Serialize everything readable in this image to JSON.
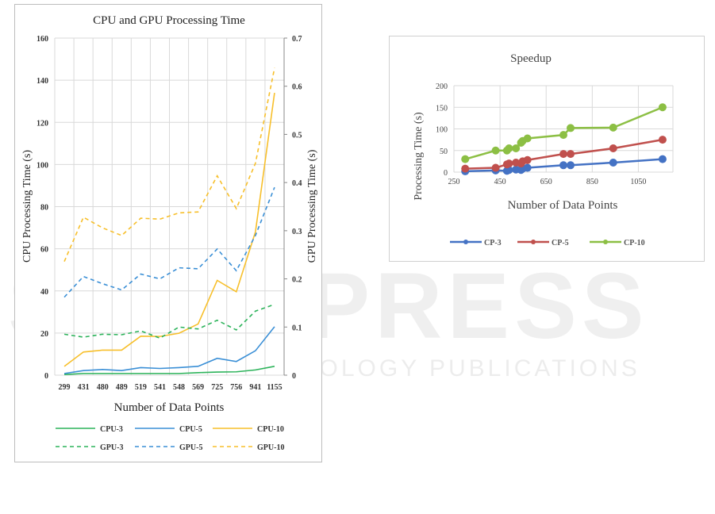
{
  "watermark": {
    "main": "SCITEPRESS",
    "sub": "SCIENCE AND TECHNOLOGY PUBLICATIONS"
  },
  "chart_data": [
    {
      "type": "line",
      "title": "CPU and GPU Processing Time",
      "xlabel": "Number of Data Points",
      "ylabel": "CPU Processing Time (s)",
      "y2label": "GPU Processing Time (s)",
      "categories": [
        "299",
        "431",
        "480",
        "489",
        "519",
        "541",
        "548",
        "569",
        "725",
        "756",
        "941",
        "1155"
      ],
      "ylim": [
        0,
        160
      ],
      "yticks": [
        0,
        20,
        40,
        60,
        80,
        100,
        120,
        140,
        160
      ],
      "y2lim": [
        0,
        0.7
      ],
      "y2ticks": [
        "0",
        "0.1",
        "0.2",
        "0.3",
        "0.4",
        "0.5",
        "0.6",
        "0.7"
      ],
      "grid": true,
      "legend_position": "bottom",
      "series": [
        {
          "name": "CPU-3",
          "axis": "left",
          "style": "solid",
          "color": "#2cb35a",
          "values": [
            0.3,
            0.8,
            0.8,
            0.8,
            0.8,
            0.8,
            0.8,
            1.2,
            1.5,
            1.6,
            2.5,
            4.2
          ]
        },
        {
          "name": "CPU-5",
          "axis": "left",
          "style": "solid",
          "color": "#3a8fd6",
          "values": [
            0.8,
            2.2,
            2.7,
            2.2,
            3.6,
            3.2,
            3.6,
            4.2,
            8,
            6.5,
            11.6,
            23
          ]
        },
        {
          "name": "CPU-10",
          "axis": "left",
          "style": "solid",
          "color": "#f7bf2a",
          "values": [
            4.2,
            11,
            11.9,
            11.9,
            18.5,
            18.4,
            19.9,
            24.3,
            45,
            39.6,
            68,
            134
          ]
        },
        {
          "name": "GPU-3",
          "axis": "right",
          "style": "dashed",
          "color": "#2cb35a",
          "values": [
            0.085,
            0.079,
            0.085,
            0.084,
            0.092,
            0.077,
            0.1,
            0.096,
            0.114,
            0.094,
            0.133,
            0.147
          ]
        },
        {
          "name": "GPU-5",
          "axis": "right",
          "style": "dashed",
          "color": "#3a8fd6",
          "values": [
            0.162,
            0.205,
            0.19,
            0.177,
            0.21,
            0.2,
            0.223,
            0.221,
            0.262,
            0.217,
            0.29,
            0.39
          ]
        },
        {
          "name": "GPU-10",
          "axis": "right",
          "style": "dashed",
          "color": "#f7bf2a",
          "values": [
            0.236,
            0.328,
            0.306,
            0.29,
            0.326,
            0.324,
            0.337,
            0.339,
            0.414,
            0.346,
            0.44,
            0.638
          ]
        }
      ]
    },
    {
      "type": "line",
      "title": "Speedup",
      "xlabel": "Number of Data Points",
      "ylabel": "Processing Time (s)",
      "xlim": [
        250,
        1200
      ],
      "xticks": [
        250,
        450,
        650,
        850,
        1050
      ],
      "ylim": [
        0,
        200
      ],
      "yticks": [
        0,
        50,
        100,
        150,
        200
      ],
      "grid": true,
      "legend_position": "bottom",
      "x": [
        299,
        431,
        480,
        489,
        519,
        541,
        548,
        569,
        725,
        756,
        941,
        1155
      ],
      "series": [
        {
          "name": "CP-3",
          "color": "#4472c4",
          "values": [
            2,
            4,
            3,
            5,
            6,
            5,
            8,
            10,
            16,
            16,
            22,
            30
          ]
        },
        {
          "name": "CP-5",
          "color": "#c0504d",
          "values": [
            8,
            10,
            18,
            20,
            22,
            20,
            25,
            28,
            42,
            42,
            55,
            75
          ]
        },
        {
          "name": "CP-10",
          "color": "#8cbf44",
          "values": [
            30,
            50,
            50,
            55,
            55,
            68,
            72,
            78,
            86,
            102,
            103,
            150
          ]
        }
      ]
    }
  ]
}
